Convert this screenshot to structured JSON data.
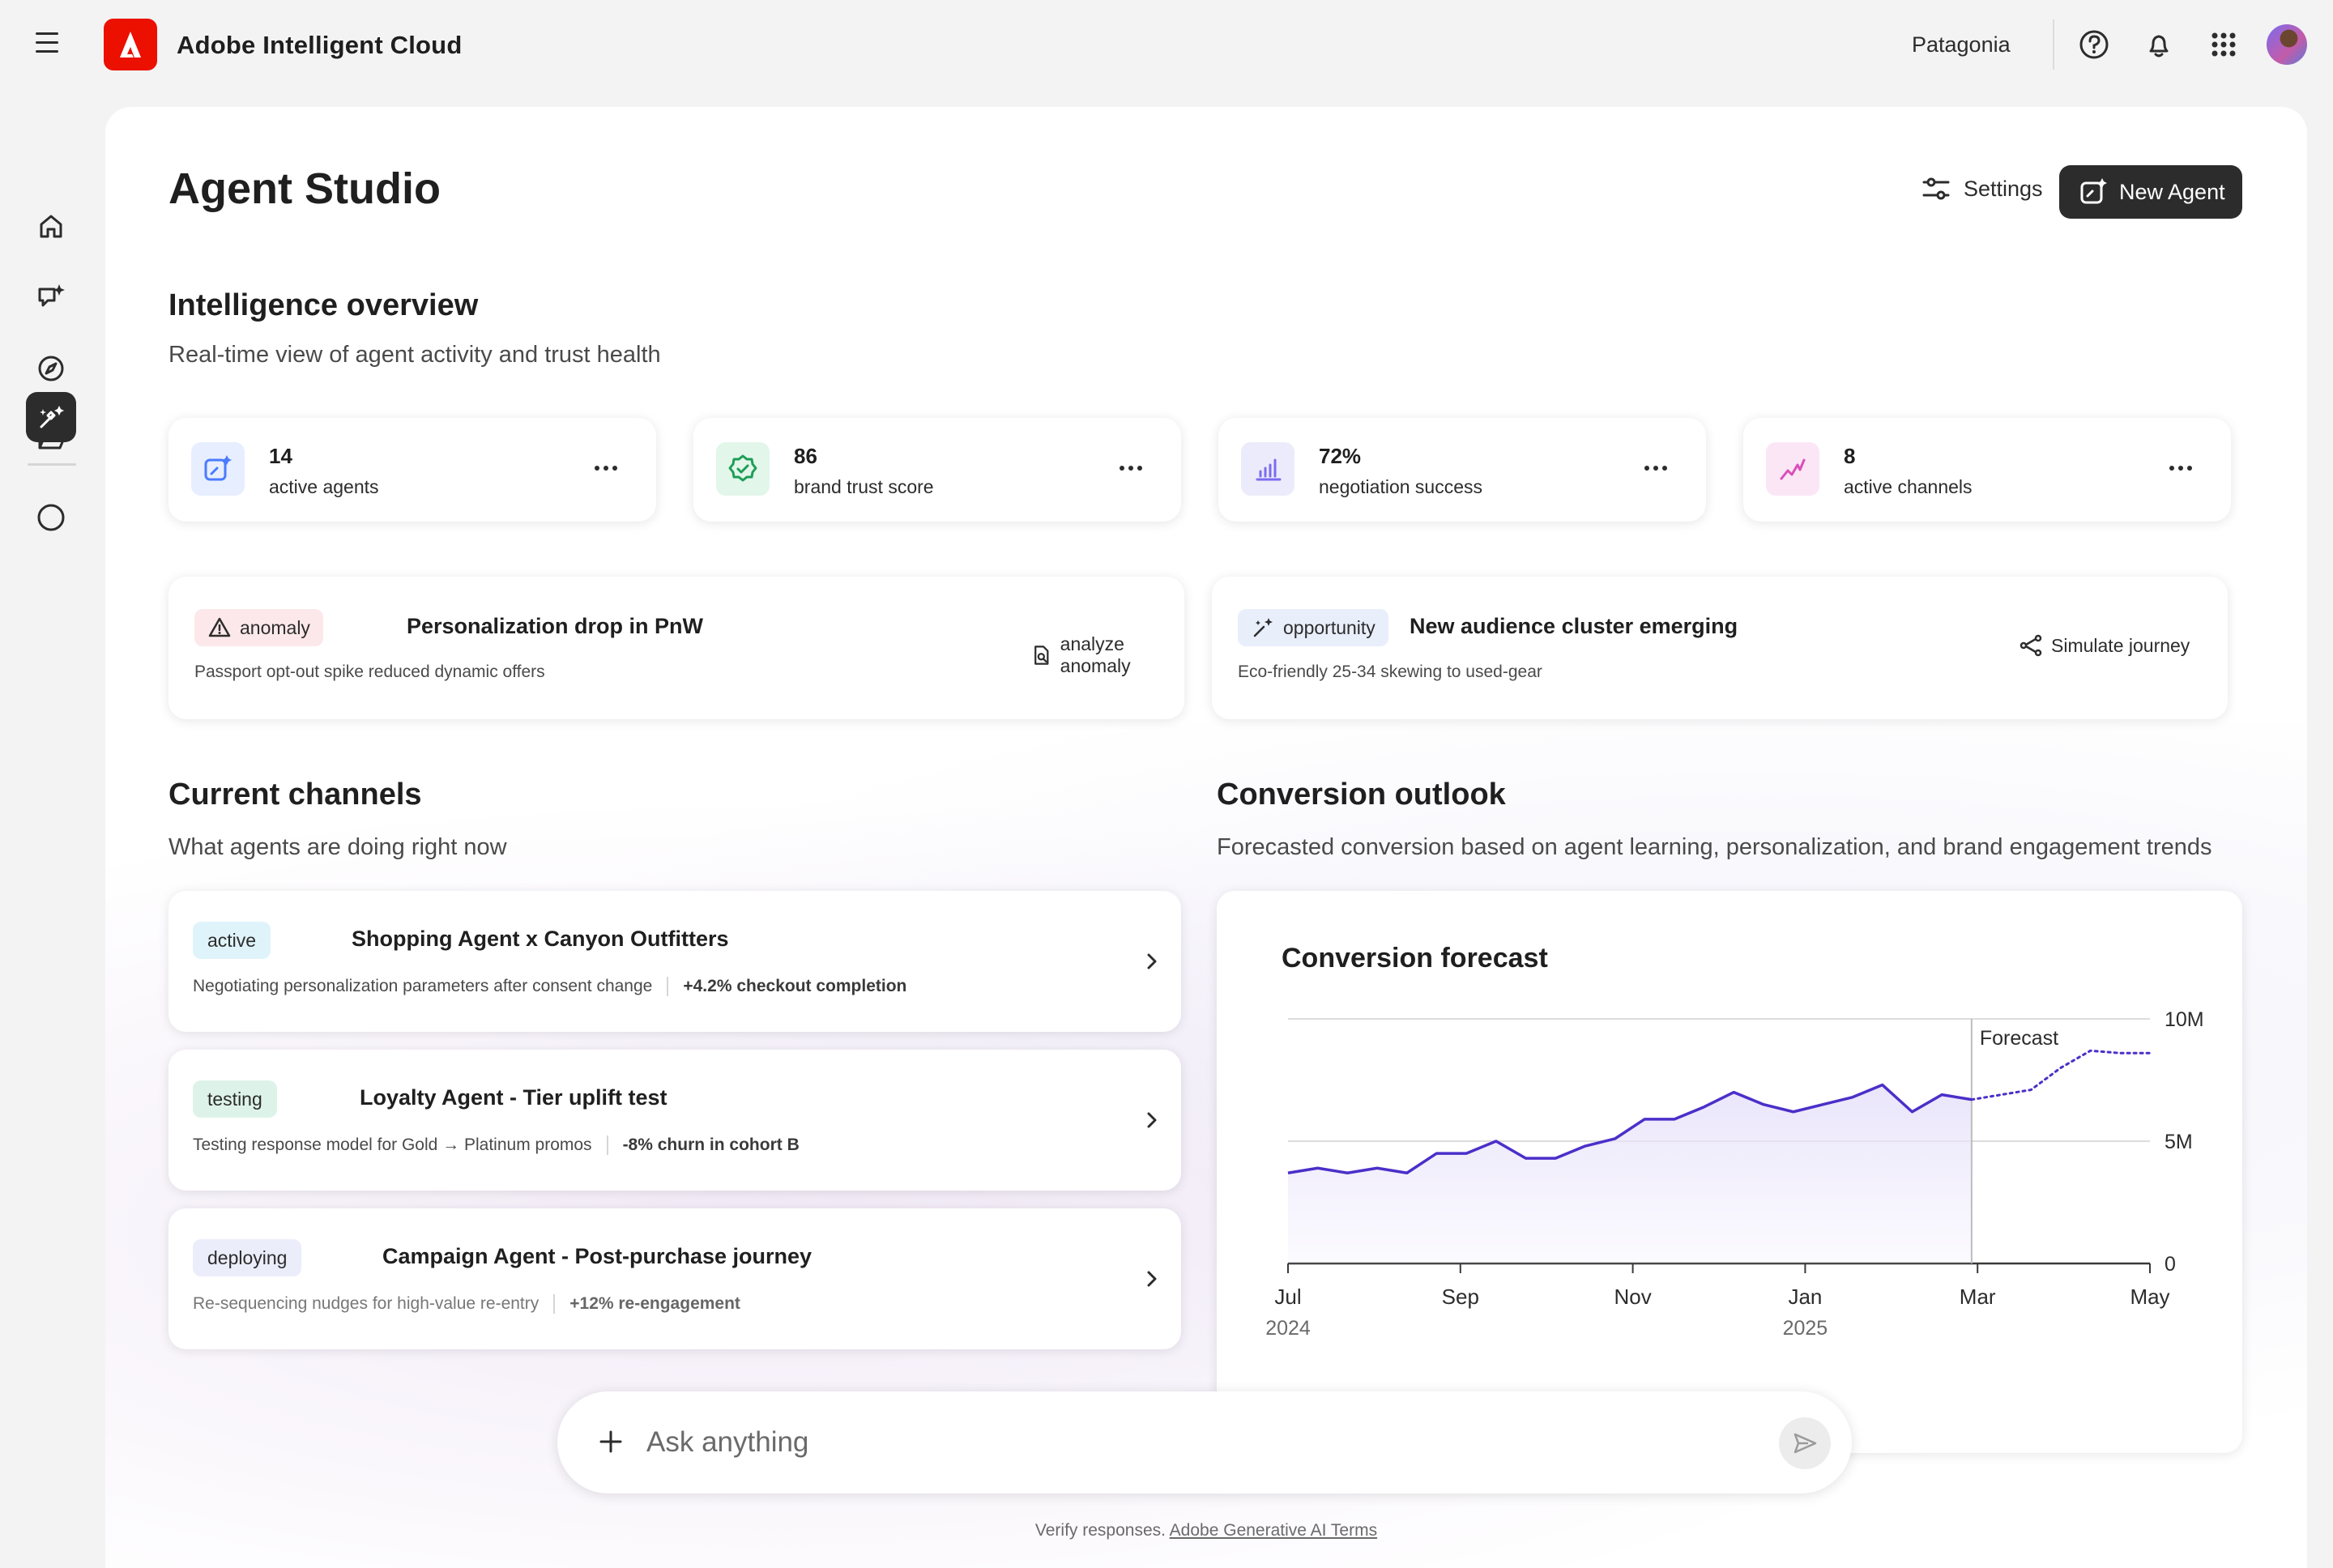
{
  "app": {
    "title": "Adobe Intelligent Cloud",
    "org": "Patagonia"
  },
  "nav": [
    "home-icon",
    "chat-sparkle-icon",
    "compass-icon",
    "folder-icon",
    "agent-studio-icon",
    "circle-icon"
  ],
  "page": {
    "title": "Agent Studio",
    "settings_label": "Settings",
    "new_agent_label": "New Agent"
  },
  "overview": {
    "title": "Intelligence overview",
    "subtitle": "Real-time view of agent activity and trust health",
    "stats": [
      {
        "value": "14",
        "label": "active agents",
        "icon": "agent-sparkle-icon",
        "color": "#4b7bff"
      },
      {
        "value": "86",
        "label": "brand trust score",
        "icon": "verified-badge-icon",
        "color": "#1f9d55"
      },
      {
        "value": "72%",
        "label": "negotiation success",
        "icon": "bar-chart-icon",
        "color": "#7c6cf0"
      },
      {
        "value": "8",
        "label": "active channels",
        "icon": "trend-line-icon",
        "color": "#d94fb8"
      }
    ]
  },
  "insights": [
    {
      "tag": "anomaly",
      "title": "Personalization drop in PnW",
      "desc": "Passport opt-out spike reduced dynamic offers",
      "action": "analyze anomaly"
    },
    {
      "tag": "opportunity",
      "title": "New audience cluster emerging",
      "desc": "Eco-friendly 25-34 skewing to used-gear",
      "action": "Simulate journey"
    }
  ],
  "channels": {
    "title": "Current channels",
    "subtitle": "What agents are doing right now",
    "items": [
      {
        "status": "active",
        "title": "Shopping Agent x Canyon Outfitters",
        "desc": "Negotiating personalization parameters after consent change",
        "metric": "+4.2% checkout completion"
      },
      {
        "status": "testing",
        "title": "Loyalty Agent - Tier uplift test",
        "desc": "Testing response model for Gold → Platinum promos",
        "metric": "-8% churn in cohort B"
      },
      {
        "status": "deploying",
        "title": "Campaign Agent - Post-purchase journey",
        "desc": "Re-sequencing nudges for high-value re-entry",
        "metric": "+12% re-engagement"
      }
    ]
  },
  "conversion": {
    "title": "Conversion outlook",
    "subtitle": "Forecasted conversion based on agent learning, personalization, and brand engagement trends"
  },
  "chart_data": {
    "type": "area",
    "title": "Conversion forecast",
    "xlabel": "",
    "ylabel": "",
    "ylim": [
      0,
      10000000
    ],
    "y_ticks": [
      "0",
      "5M",
      "10M"
    ],
    "x_ticks": [
      {
        "label": "Jul",
        "year": "2024"
      },
      {
        "label": "Sep",
        "year": ""
      },
      {
        "label": "Nov",
        "year": ""
      },
      {
        "label": "Jan",
        "year": "2025"
      },
      {
        "label": "Mar",
        "year": ""
      },
      {
        "label": "May",
        "year": ""
      }
    ],
    "forecast_label": "Forecast",
    "forecast_start_index": 23,
    "series": [
      {
        "values": [
          3.7,
          3.9,
          3.7,
          3.9,
          3.7,
          4.5,
          4.5,
          5.0,
          4.3,
          4.3,
          4.8,
          5.1,
          5.9,
          5.9,
          6.4,
          7.0,
          6.5,
          6.2,
          6.5,
          6.8,
          7.3,
          6.2,
          6.9,
          6.7
        ]
      },
      {
        "values": [
          6.7,
          6.9,
          7.1,
          8.0,
          8.7,
          8.6,
          8.6
        ]
      }
    ],
    "colors": {
      "line": "#4b2fc9",
      "fill": "#e9e4fb"
    }
  },
  "ask": {
    "placeholder": "Ask anything"
  },
  "footer": {
    "text": "Verify responses.",
    "link": "Adobe Generative AI Terms"
  }
}
